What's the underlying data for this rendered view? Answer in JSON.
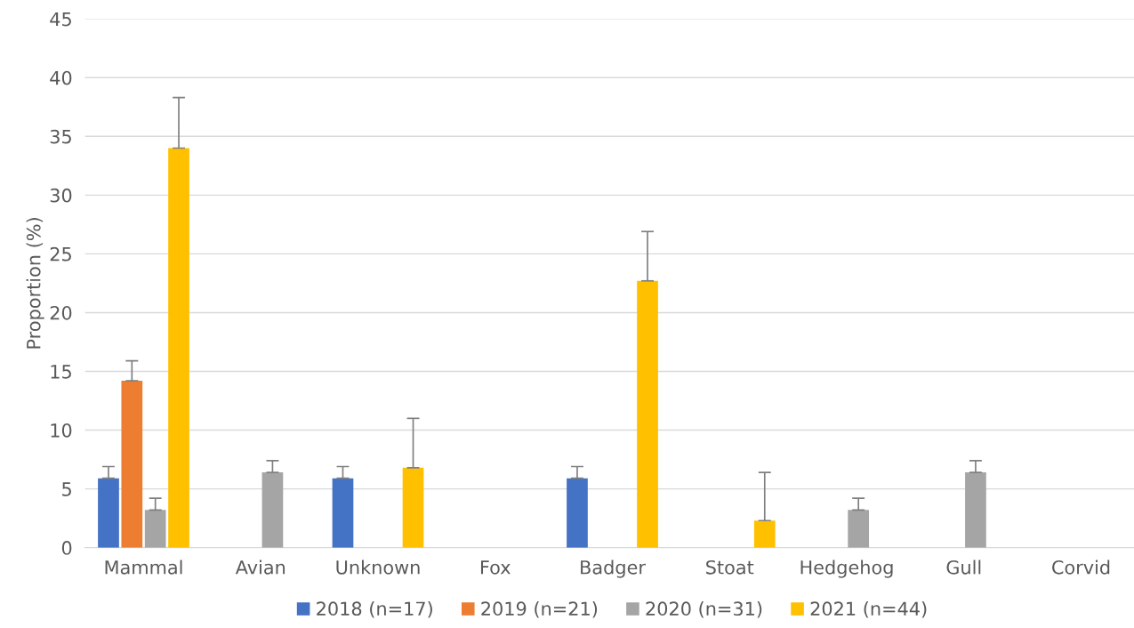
{
  "chart_data": {
    "type": "bar",
    "ylabel": "Proportion (%)",
    "categories": [
      "Mammal",
      "Avian",
      "Unknown",
      "Fox",
      "Badger",
      "Stoat",
      "Hedgehog",
      "Gull",
      "Corvid"
    ],
    "series": [
      {
        "name": "2018 (n=17)",
        "color": "#4472c4",
        "values": [
          5.9,
          null,
          5.9,
          null,
          5.9,
          null,
          null,
          null,
          null
        ],
        "errors": [
          [
            5.9,
            6.9
          ],
          null,
          [
            5.9,
            6.9
          ],
          null,
          [
            5.9,
            6.9
          ],
          null,
          null,
          null,
          null
        ]
      },
      {
        "name": "2019 (n=21)",
        "color": "#ed7d31",
        "values": [
          14.2,
          null,
          null,
          null,
          null,
          null,
          null,
          null,
          null
        ],
        "errors": [
          [
            14.2,
            15.9
          ],
          null,
          null,
          null,
          null,
          null,
          null,
          null,
          null
        ]
      },
      {
        "name": "2020 (n=31)",
        "color": "#a5a5a5",
        "values": [
          3.2,
          6.4,
          null,
          null,
          null,
          null,
          3.2,
          6.4,
          null
        ],
        "errors": [
          [
            3.2,
            4.2
          ],
          [
            6.4,
            7.4
          ],
          null,
          null,
          null,
          null,
          [
            3.2,
            4.2
          ],
          [
            6.4,
            7.4
          ],
          null
        ]
      },
      {
        "name": "2021 (n=44)",
        "color": "#ffc000",
        "values": [
          34.0,
          null,
          6.8,
          null,
          22.7,
          2.3,
          null,
          null,
          null
        ],
        "errors": [
          [
            34.0,
            38.3
          ],
          null,
          [
            6.8,
            11.0
          ],
          null,
          [
            22.7,
            26.9
          ],
          [
            2.3,
            6.4
          ],
          null,
          null,
          null
        ]
      }
    ],
    "ylim": [
      0,
      45
    ],
    "yticks": [
      0,
      5,
      10,
      15,
      20,
      25,
      30,
      35,
      40,
      45
    ],
    "grid": "y",
    "legend": "bottom"
  }
}
